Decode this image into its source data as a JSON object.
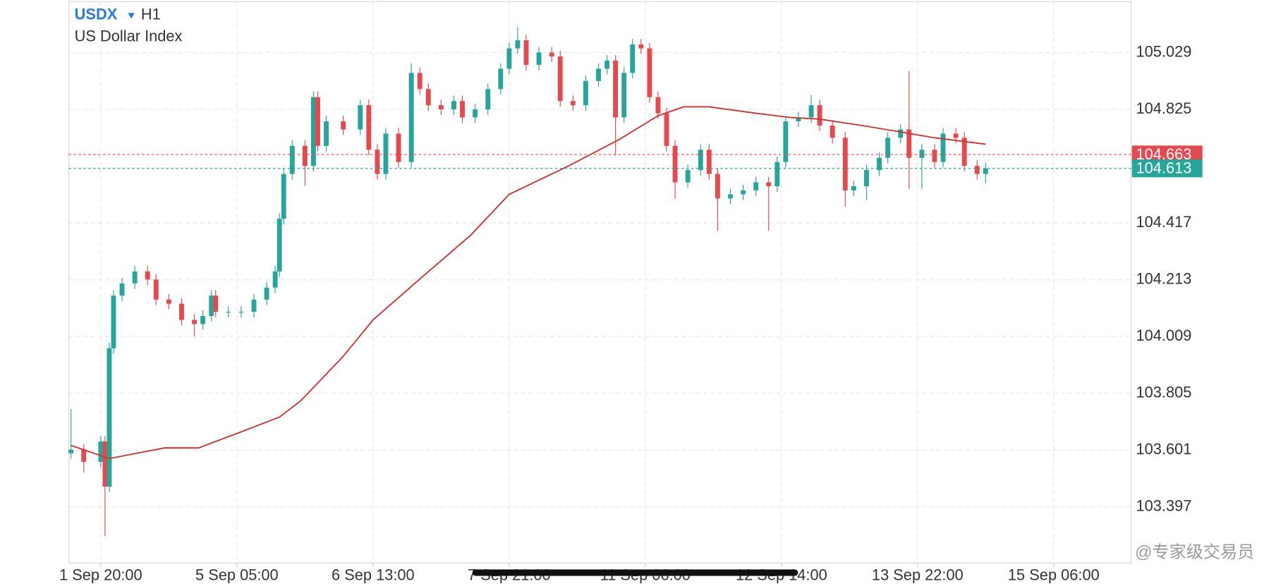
{
  "chart_data": {
    "type": "candlestick",
    "title": "USDX",
    "timeframe": "H1",
    "subtitle": "US Dollar Index",
    "watermark": "@专家级交易员",
    "up_color": "#26a69a",
    "down_color": "#e5484d",
    "grid": true,
    "x": [
      0,
      3,
      7,
      8,
      9,
      10,
      12,
      15,
      18,
      20,
      23,
      26,
      29,
      31,
      33,
      34,
      37,
      40,
      43,
      46,
      48,
      49,
      50,
      52,
      55,
      57,
      58,
      60,
      64,
      68,
      70,
      72,
      74,
      77,
      80,
      82,
      84,
      87,
      90,
      92,
      95,
      98,
      101,
      103,
      105,
      107,
      110,
      113,
      115,
      118,
      121,
      124,
      126,
      128,
      130,
      132,
      134,
      136,
      138,
      140,
      142,
      145,
      148,
      150,
      152,
      155,
      158,
      161,
      164,
      166,
      168,
      171,
      174,
      176,
      179,
      182,
      184,
      187,
      190,
      192,
      195,
      197,
      200,
      203,
      205,
      208,
      210,
      213,
      215
    ],
    "open": [
      103.59,
      103.603,
      103.559,
      103.632,
      103.47,
      103.967,
      104.156,
      104.2,
      104.243,
      104.214,
      104.142,
      104.127,
      104.069,
      104.054,
      104.083,
      104.156,
      104.098,
      104.098,
      104.098,
      104.142,
      104.185,
      104.243,
      104.432,
      104.593,
      104.694,
      104.622,
      104.869,
      104.694,
      104.782,
      104.753,
      104.84,
      104.68,
      104.593,
      104.738,
      104.636,
      104.956,
      104.898,
      104.84,
      104.825,
      104.855,
      104.796,
      104.825,
      104.898,
      104.971,
      105.044,
      105.073,
      104.985,
      105.029,
      105.015,
      104.855,
      104.84,
      104.927,
      104.971,
      105.0,
      104.796,
      104.956,
      105.058,
      105.044,
      104.869,
      104.811,
      104.694,
      104.563,
      104.607,
      104.68,
      104.593,
      104.505,
      104.52,
      104.534,
      104.563,
      104.549,
      104.636,
      104.782,
      104.796,
      104.84,
      104.767,
      104.723,
      104.534,
      104.549,
      104.607,
      104.651,
      104.723,
      104.753,
      104.651,
      104.68,
      104.636,
      104.738,
      104.723,
      104.622,
      104.593
    ],
    "high": [
      103.749,
      103.623,
      103.652,
      103.652,
      103.987,
      104.176,
      104.22,
      104.263,
      104.263,
      104.234,
      104.162,
      104.147,
      104.089,
      104.103,
      104.176,
      104.176,
      104.118,
      104.118,
      104.162,
      104.205,
      104.263,
      104.452,
      104.613,
      104.714,
      104.714,
      104.889,
      104.889,
      104.802,
      104.802,
      104.86,
      104.86,
      104.7,
      104.758,
      104.758,
      104.99,
      104.976,
      104.918,
      104.86,
      104.875,
      104.875,
      104.845,
      104.918,
      104.991,
      105.064,
      105.12,
      105.093,
      105.049,
      105.049,
      105.035,
      104.875,
      104.947,
      104.991,
      105.02,
      105.02,
      104.976,
      105.078,
      105.078,
      105.064,
      104.889,
      104.831,
      104.714,
      104.627,
      104.7,
      104.7,
      104.613,
      104.54,
      104.554,
      104.583,
      104.583,
      104.656,
      104.802,
      104.816,
      104.876,
      104.86,
      104.787,
      104.743,
      104.569,
      104.627,
      104.671,
      104.743,
      104.773,
      104.962,
      104.7,
      104.7,
      104.758,
      104.758,
      104.743,
      104.642,
      104.633
    ],
    "low": [
      103.57,
      103.52,
      103.539,
      103.292,
      103.45,
      103.947,
      104.136,
      104.18,
      104.194,
      104.122,
      104.107,
      104.049,
      104.01,
      104.034,
      104.063,
      104.078,
      104.078,
      104.078,
      104.078,
      104.122,
      104.165,
      104.223,
      104.412,
      104.573,
      104.55,
      104.602,
      104.674,
      104.674,
      104.733,
      104.733,
      104.66,
      104.573,
      104.573,
      104.616,
      104.616,
      104.878,
      104.82,
      104.805,
      104.805,
      104.776,
      104.776,
      104.805,
      104.878,
      104.951,
      105.024,
      104.965,
      104.965,
      104.995,
      104.835,
      104.82,
      104.82,
      104.907,
      104.951,
      104.66,
      104.776,
      104.936,
      105.024,
      104.849,
      104.791,
      104.674,
      104.505,
      104.543,
      104.587,
      104.573,
      104.389,
      104.485,
      104.5,
      104.514,
      104.389,
      104.529,
      104.616,
      104.762,
      104.776,
      104.747,
      104.703,
      104.475,
      104.514,
      104.5,
      104.587,
      104.631,
      104.703,
      104.54,
      104.54,
      104.616,
      104.616,
      104.703,
      104.602,
      104.573,
      104.56
    ],
    "close": [
      103.603,
      103.559,
      103.632,
      103.47,
      103.967,
      104.156,
      104.2,
      104.243,
      104.214,
      104.142,
      104.127,
      104.069,
      104.054,
      104.083,
      104.156,
      104.098,
      104.098,
      104.098,
      104.142,
      104.185,
      104.243,
      104.432,
      104.593,
      104.694,
      104.622,
      104.869,
      104.694,
      104.782,
      104.753,
      104.84,
      104.68,
      104.593,
      104.738,
      104.636,
      104.956,
      104.898,
      104.84,
      104.825,
      104.855,
      104.796,
      104.825,
      104.898,
      104.971,
      105.044,
      105.073,
      104.985,
      105.029,
      105.015,
      104.855,
      104.84,
      104.927,
      104.971,
      105.0,
      104.796,
      104.956,
      105.058,
      105.044,
      104.869,
      104.811,
      104.694,
      104.563,
      104.607,
      104.68,
      104.593,
      104.505,
      104.52,
      104.534,
      104.563,
      104.549,
      104.636,
      104.782,
      104.796,
      104.84,
      104.767,
      104.723,
      104.534,
      104.549,
      104.607,
      104.651,
      104.723,
      104.753,
      104.651,
      104.68,
      104.636,
      104.738,
      104.723,
      104.622,
      104.593,
      104.613
    ],
    "moving_average": {
      "color": "#d32f2f",
      "x": [
        0,
        9,
        22,
        30,
        39,
        49,
        54,
        64,
        71,
        83,
        94,
        103,
        117,
        129,
        138,
        144,
        150,
        161,
        169,
        176,
        186,
        195,
        203,
        215
      ],
      "values": [
        103.618,
        103.571,
        103.609,
        103.609,
        103.661,
        103.72,
        103.778,
        103.938,
        104.069,
        104.229,
        104.374,
        104.52,
        104.622,
        104.718,
        104.802,
        104.834,
        104.834,
        104.811,
        104.796,
        104.79,
        104.767,
        104.744,
        104.723,
        104.7
      ]
    },
    "price_lines": [
      {
        "value": 104.663,
        "color": "#e5484d"
      },
      {
        "value": 104.613,
        "color": "#26a69a"
      }
    ],
    "xlim": [
      -0.5,
      249.2
    ],
    "ylim": [
      103.196,
      105.212
    ],
    "yticks": [
      103.397,
      103.601,
      103.805,
      104.009,
      104.213,
      104.417,
      104.825,
      105.029
    ],
    "xticks": [
      {
        "value": 7,
        "label": "1 Sep 20:00"
      },
      {
        "value": 39,
        "label": "5 Sep 05:00"
      },
      {
        "value": 71,
        "label": "6 Sep 13:00"
      },
      {
        "value": 103,
        "label": "7 Sep 21:00"
      },
      {
        "value": 135,
        "label": "11 Sep 06:00"
      },
      {
        "value": 167,
        "label": "12 Sep 14:00"
      },
      {
        "value": 199,
        "label": "13 Sep 22:00"
      },
      {
        "value": 231,
        "label": "15 Sep 06:00"
      }
    ]
  }
}
